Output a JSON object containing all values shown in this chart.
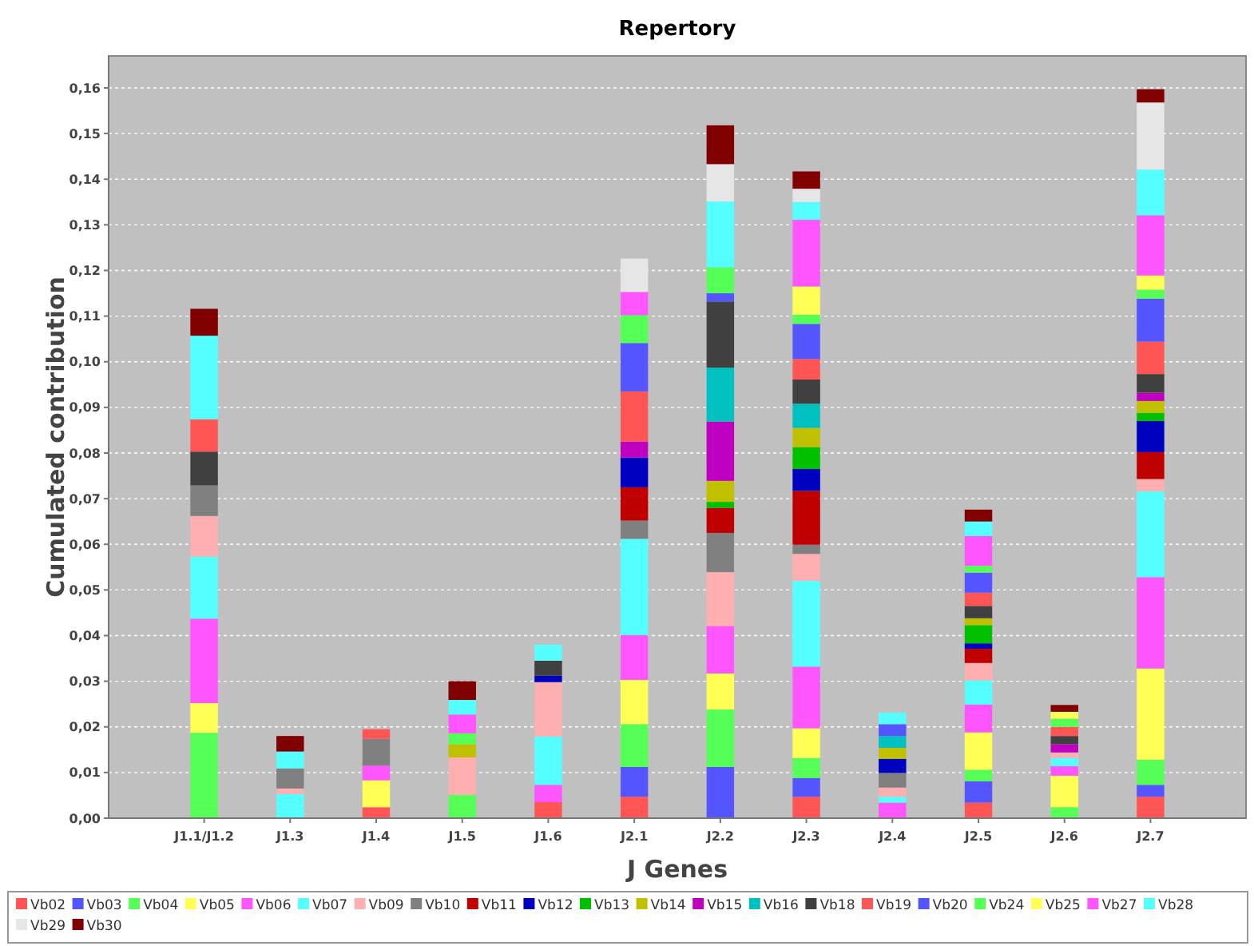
{
  "chart_data": {
    "type": "bar",
    "title": "Repertory",
    "xlabel": "J Genes",
    "ylabel": "Cumulated contribution",
    "stacked": true,
    "grid": "y",
    "legend": "bottom",
    "categories": [
      "J1.1/J1.2",
      "J1.3",
      "J1.4",
      "J1.5",
      "J1.6",
      "J2.1",
      "J2.2",
      "J2.3",
      "J2.4",
      "J2.5",
      "J2.6",
      "J2.7"
    ],
    "ylim": [
      0,
      0.167
    ],
    "yticks": [
      {
        "value": 0,
        "label": "0,00"
      },
      {
        "value": 0.01,
        "label": "0,01"
      },
      {
        "value": 0.02,
        "label": "0,02"
      },
      {
        "value": 0.03,
        "label": "0,03"
      },
      {
        "value": 0.04,
        "label": "0,04"
      },
      {
        "value": 0.05,
        "label": "0,05"
      },
      {
        "value": 0.06,
        "label": "0,06"
      },
      {
        "value": 0.07,
        "label": "0,07"
      },
      {
        "value": 0.08,
        "label": "0,08"
      },
      {
        "value": 0.09,
        "label": "0,09"
      },
      {
        "value": 0.1,
        "label": "0,10"
      },
      {
        "value": 0.11,
        "label": "0,11"
      },
      {
        "value": 0.12,
        "label": "0,12"
      },
      {
        "value": 0.13,
        "label": "0,13"
      },
      {
        "value": 0.14,
        "label": "0,14"
      },
      {
        "value": 0.15,
        "label": "0,15"
      },
      {
        "value": 0.16,
        "label": "0,16"
      }
    ],
    "series": [
      {
        "name": "Vb02",
        "color": "#ff5555",
        "values": [
          0,
          0,
          0.0024,
          0,
          0.0035,
          0.0047,
          0,
          0.0047,
          0,
          0.0034,
          0,
          0.0047
        ]
      },
      {
        "name": "Vb03",
        "color": "#5555ff",
        "values": [
          0,
          0,
          0,
          0,
          0,
          0.0065,
          0.0112,
          0.0041,
          0,
          0.0047,
          0,
          0.0026
        ]
      },
      {
        "name": "Vb04",
        "color": "#55ff55",
        "values": [
          0.0187,
          0,
          0,
          0.0051,
          0,
          0.0094,
          0.0126,
          0.0044,
          0,
          0.0025,
          0.0024,
          0.0055
        ]
      },
      {
        "name": "Vb05",
        "color": "#ffff55",
        "values": [
          0.0065,
          0,
          0.0059,
          0,
          0,
          0.0097,
          0.0079,
          0.0065,
          0,
          0.0082,
          0.0069,
          0.02
        ]
      },
      {
        "name": "Vb06",
        "color": "#ff55ff",
        "values": [
          0.0185,
          0,
          0.0032,
          0,
          0.0038,
          0.0098,
          0.0104,
          0.0135,
          0.0034,
          0.0061,
          0.0021,
          0.02
        ]
      },
      {
        "name": "Vb07",
        "color": "#55ffff",
        "values": [
          0.0136,
          0.0053,
          0,
          0,
          0.0106,
          0.0211,
          0,
          0.0188,
          0.0013,
          0.0053,
          0.0018,
          0.0188
        ]
      },
      {
        "name": "Vb09",
        "color": "#ffafaf",
        "values": [
          0.0089,
          0.0012,
          0,
          0.0082,
          0.0119,
          0,
          0.0118,
          0.0059,
          0.002,
          0.0038,
          0.0012,
          0.0027
        ]
      },
      {
        "name": "Vb10",
        "color": "#808080",
        "values": [
          0.0067,
          0.0044,
          0.0059,
          0,
          0,
          0.004,
          0.0086,
          0.002,
          0.0032,
          0,
          0,
          0
        ]
      },
      {
        "name": "Vb11",
        "color": "#c00000",
        "values": [
          0,
          0,
          0,
          0,
          0,
          0.0073,
          0.0055,
          0.0118,
          0,
          0.0031,
          0,
          0.0059
        ]
      },
      {
        "name": "Vb12",
        "color": "#0000c0",
        "values": [
          0,
          0,
          0,
          0,
          0.0014,
          0.0065,
          0,
          0.0048,
          0.0031,
          0.0012,
          0,
          0.0068
        ]
      },
      {
        "name": "Vb13",
        "color": "#00c000",
        "values": [
          0,
          0,
          0,
          0,
          0,
          0,
          0.0013,
          0.0048,
          0,
          0.004,
          0,
          0.0018
        ]
      },
      {
        "name": "Vb14",
        "color": "#c0c000",
        "values": [
          0,
          0,
          0,
          0.0029,
          0,
          0,
          0.0046,
          0.0042,
          0.0024,
          0.0015,
          0,
          0.0026
        ]
      },
      {
        "name": "Vb15",
        "color": "#c000c0",
        "values": [
          0,
          0,
          0,
          0,
          0,
          0.0035,
          0.013,
          0,
          0,
          0,
          0.0018,
          0.0018
        ]
      },
      {
        "name": "Vb16",
        "color": "#00c0c0",
        "values": [
          0,
          0,
          0,
          0,
          0,
          0,
          0.0118,
          0.0053,
          0.0026,
          0,
          0,
          0
        ]
      },
      {
        "name": "Vb18",
        "color": "#404040",
        "values": [
          0.0074,
          0,
          0,
          0,
          0.0033,
          0,
          0.0145,
          0.0053,
          0,
          0.0027,
          0.0018,
          0.0041
        ]
      },
      {
        "name": "Vb19",
        "color": "#ff5555",
        "values": [
          0.0071,
          0,
          0.0021,
          0,
          0,
          0.011,
          0,
          0.0045,
          0,
          0.0029,
          0.002,
          0.0071
        ]
      },
      {
        "name": "Vb20",
        "color": "#5555ff",
        "values": [
          0,
          0,
          0,
          0,
          0,
          0.0106,
          0.0018,
          0.0077,
          0.0026,
          0.0044,
          0,
          0.0094
        ]
      },
      {
        "name": "Vb24",
        "color": "#55ff55",
        "values": [
          0,
          0,
          0,
          0.0024,
          0,
          0.0061,
          0.0057,
          0.002,
          0,
          0.0015,
          0.0018,
          0.002
        ]
      },
      {
        "name": "Vb25",
        "color": "#ffff55",
        "values": [
          0,
          0,
          0,
          0,
          0,
          0,
          0,
          0.0062,
          0,
          0,
          0.0015,
          0.0031
        ]
      },
      {
        "name": "Vb27",
        "color": "#ff55ff",
        "values": [
          0,
          0,
          0,
          0.0041,
          0,
          0.0051,
          0,
          0.0146,
          0,
          0.0065,
          0,
          0.0132
        ]
      },
      {
        "name": "Vb28",
        "color": "#55ffff",
        "values": [
          0.0183,
          0.0037,
          0,
          0.0032,
          0.0035,
          0,
          0.0144,
          0.0039,
          0.0025,
          0.0032,
          0,
          0.01
        ]
      },
      {
        "name": "Vb29",
        "color": "#e6e6e6",
        "values": [
          0,
          0,
          0,
          0,
          0,
          0.0073,
          0.0082,
          0.0029,
          0,
          0,
          0,
          0.0147
        ]
      },
      {
        "name": "Vb30",
        "color": "#800000",
        "values": [
          0.0059,
          0.0034,
          0,
          0.0041,
          0,
          0,
          0.0085,
          0.0038,
          0,
          0.0026,
          0.0015,
          0.0029
        ]
      }
    ]
  }
}
